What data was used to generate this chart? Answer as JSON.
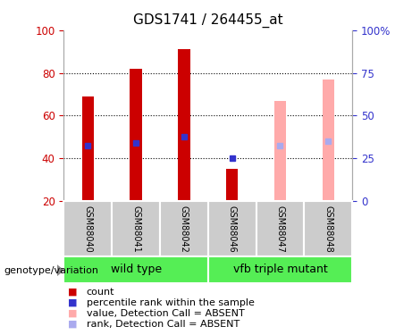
{
  "title": "GDS1741 / 264455_at",
  "samples": [
    "GSM88040",
    "GSM88041",
    "GSM88042",
    "GSM88046",
    "GSM88047",
    "GSM88048"
  ],
  "bar_values": [
    69,
    82,
    91,
    35,
    67,
    77
  ],
  "rank_values": [
    46,
    47,
    50,
    40,
    46,
    48
  ],
  "bar_colors": [
    "#cc0000",
    "#cc0000",
    "#cc0000",
    "#cc0000",
    "#ffaaaa",
    "#ffaaaa"
  ],
  "rank_colors": [
    "#3333cc",
    "#3333cc",
    "#3333cc",
    "#3333cc",
    "#aaaaee",
    "#aaaaee"
  ],
  "is_absent": [
    false,
    false,
    false,
    false,
    true,
    true
  ],
  "ylim_left": [
    20,
    100
  ],
  "ylim_right": [
    0,
    100
  ],
  "right_ticks": [
    0,
    25,
    50,
    75,
    100
  ],
  "right_tick_labels": [
    "0",
    "25",
    "50",
    "75",
    "100%"
  ],
  "left_ticks": [
    20,
    40,
    60,
    80,
    100
  ],
  "grid_lines": [
    40,
    60,
    80
  ],
  "bar_width": 0.25,
  "legend_items": [
    {
      "label": "count",
      "color": "#cc0000"
    },
    {
      "label": "percentile rank within the sample",
      "color": "#3333cc"
    },
    {
      "label": "value, Detection Call = ABSENT",
      "color": "#ffaaaa"
    },
    {
      "label": "rank, Detection Call = ABSENT",
      "color": "#aaaaee"
    }
  ],
  "group_labels": [
    "wild type",
    "vfb triple mutant"
  ],
  "genotype_label": "genotype/variation",
  "axis_color_left": "#cc0000",
  "axis_color_right": "#3333cc",
  "title_fontsize": 11,
  "tick_fontsize": 8.5,
  "sample_label_fontsize": 7,
  "group_fontsize": 9,
  "legend_fontsize": 8,
  "plot_bg_color": "#ffffff",
  "sample_box_color": "#cccccc",
  "group_box_color": "#55ee55"
}
